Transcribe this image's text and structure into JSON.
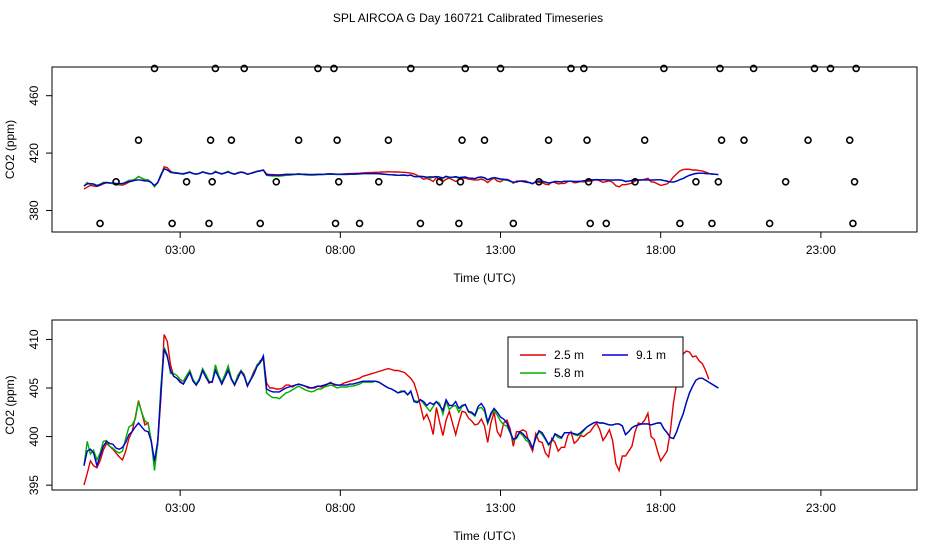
{
  "title": "SPL AIRCOA G  Day 160721  Calibrated Timeseries",
  "chart_data": [
    {
      "type": "line",
      "id": "top",
      "xlabel": "Time (UTC)",
      "ylabel": "CO2 (ppm)",
      "xlim": [
        -1.0,
        26.0
      ],
      "ylim": [
        365,
        480
      ],
      "xticks": [
        {
          "v": 3,
          "label": "03:00"
        },
        {
          "v": 8,
          "label": "08:00"
        },
        {
          "v": 13,
          "label": "13:00"
        },
        {
          "v": 18,
          "label": "18:00"
        },
        {
          "v": 23,
          "label": "23:00"
        }
      ],
      "yticks": [
        {
          "v": 380,
          "label": "380"
        },
        {
          "v": 420,
          "label": "420"
        },
        {
          "v": 460,
          "label": "460"
        }
      ],
      "series": [
        {
          "name": "2.5 m",
          "color": "#e00000"
        },
        {
          "name": "5.8 m",
          "color": "#00b000"
        },
        {
          "name": "9.1 m",
          "color": "#0000d0"
        }
      ],
      "reference_points": {
        "color": "#000000",
        "x": [
          0.5,
          2.2,
          1.7,
          1.0,
          2.75,
          3.2,
          3.9,
          4.0,
          4.1,
          3.95,
          4.6,
          5.0,
          5.5,
          6.0,
          6.7,
          7.3,
          7.8,
          7.9,
          7.85,
          7.95,
          8.6,
          9.2,
          9.5,
          10.2,
          10.5,
          11.1,
          11.7,
          11.8,
          11.9,
          11.75,
          12.5,
          13.0,
          13.4,
          14.2,
          14.5,
          15.2,
          15.6,
          15.7,
          15.75,
          15.8,
          16.3,
          17.2,
          17.5,
          18.1,
          18.6,
          19.1,
          19.6,
          19.8,
          19.9,
          19.85,
          20.6,
          20.9,
          21.4,
          21.9,
          22.6,
          22.8,
          23.3,
          23.9,
          24.0,
          24.05,
          24.1
        ],
        "y": [
          371,
          479,
          429,
          400,
          371,
          400,
          371,
          400,
          479,
          429,
          429,
          479,
          371,
          400,
          429,
          479,
          479,
          429,
          371,
          400,
          371,
          400,
          429,
          479,
          371,
          400,
          371,
          429,
          479,
          400,
          429,
          479,
          371,
          400,
          429,
          479,
          479,
          429,
          400,
          371,
          371,
          400,
          429,
          479,
          371,
          400,
          371,
          400,
          429,
          479,
          429,
          479,
          371,
          400,
          429,
          479,
          479,
          429,
          371,
          400,
          479
        ]
      }
    },
    {
      "type": "line",
      "id": "bottom",
      "xlabel": "Time (UTC)",
      "ylabel": "CO2 (ppm)",
      "xlim": [
        -1.0,
        26.0
      ],
      "ylim": [
        394.5,
        412
      ],
      "xticks": [
        {
          "v": 3,
          "label": "03:00"
        },
        {
          "v": 8,
          "label": "08:00"
        },
        {
          "v": 13,
          "label": "13:00"
        },
        {
          "v": 18,
          "label": "18:00"
        },
        {
          "v": 23,
          "label": "23:00"
        }
      ],
      "yticks": [
        {
          "v": 395,
          "label": "395"
        },
        {
          "v": 400,
          "label": "400"
        },
        {
          "v": 405,
          "label": "405"
        },
        {
          "v": 410,
          "label": "410"
        }
      ],
      "legend": "top-center",
      "series": [
        {
          "name": "2.5 m",
          "color": "#e00000"
        },
        {
          "name": "5.8 m",
          "color": "#00b000"
        },
        {
          "name": "9.1 m",
          "color": "#0000d0"
        }
      ],
      "x": [
        0.0,
        0.1,
        0.2,
        0.3,
        0.4,
        0.5,
        0.6,
        0.7,
        0.8,
        0.9,
        1.0,
        1.1,
        1.2,
        1.3,
        1.4,
        1.5,
        1.6,
        1.7,
        1.8,
        1.9,
        2.0,
        2.1,
        2.2,
        2.3,
        2.4,
        2.5,
        2.6,
        2.7,
        2.8,
        2.9,
        3.0,
        3.1,
        3.2,
        3.3,
        3.4,
        3.5,
        3.6,
        3.7,
        3.8,
        3.9,
        4.0,
        4.1,
        4.2,
        4.3,
        4.4,
        4.5,
        4.6,
        4.7,
        4.8,
        4.9,
        5.0,
        5.1,
        5.2,
        5.3,
        5.4,
        5.5,
        5.6,
        5.7,
        5.8,
        5.9,
        6.0,
        6.1,
        6.2,
        6.3,
        6.4,
        6.5,
        6.6,
        6.7,
        6.8,
        6.9,
        7.0,
        7.1,
        7.2,
        7.3,
        7.4,
        7.5,
        7.6,
        7.7,
        7.8,
        7.9,
        8.0,
        8.1,
        8.2,
        8.3,
        8.4,
        8.5,
        8.6,
        8.7,
        8.8,
        8.9,
        9.0,
        9.1,
        9.2,
        9.3,
        9.4,
        9.5,
        9.6,
        9.7,
        9.8,
        9.9,
        10.0,
        10.1,
        10.2,
        10.3,
        10.4,
        10.5,
        10.6,
        10.7,
        10.8,
        10.9,
        11.0,
        11.1,
        11.2,
        11.3,
        11.4,
        11.5,
        11.6,
        11.7,
        11.8,
        11.9,
        12.0,
        12.1,
        12.2,
        12.3,
        12.4,
        12.5,
        12.6,
        12.7,
        12.8,
        12.9,
        13.0,
        13.1,
        13.2,
        13.3,
        13.4,
        13.5,
        13.6,
        13.7,
        13.8,
        13.9,
        14.0,
        14.1,
        14.2,
        14.3,
        14.4,
        14.5,
        14.6,
        14.7,
        14.8,
        14.9,
        15.0,
        15.1,
        15.2,
        15.3,
        15.4,
        15.5,
        15.6,
        15.7,
        15.8,
        15.9,
        16.0,
        16.1,
        16.2,
        16.3,
        16.4,
        16.5,
        16.6,
        16.7,
        16.8,
        16.9,
        17.0,
        17.1,
        17.2,
        17.3,
        17.4,
        17.5,
        17.6,
        17.7,
        17.8,
        17.9,
        18.0,
        18.1,
        18.2,
        18.3,
        18.4,
        18.5,
        18.6,
        18.7,
        18.8,
        18.9,
        19.0,
        19.1,
        19.2,
        19.3,
        19.4,
        19.5,
        19.6,
        19.7,
        19.8,
        19.9,
        20.0,
        20.1,
        20.2,
        20.3,
        20.4,
        20.5,
        20.6,
        20.7,
        20.8,
        20.9,
        21.0,
        21.1,
        21.2,
        21.3,
        21.4,
        21.5,
        21.6,
        21.7,
        21.8,
        21.9,
        22.0,
        22.1,
        22.2,
        22.3,
        22.4,
        22.5,
        22.6,
        22.7,
        22.8,
        22.9,
        23.0,
        23.1,
        23.2,
        23.3,
        23.4,
        23.5,
        23.6,
        23.7,
        23.8,
        23.9,
        24.0
      ],
      "values_by_series": [
        [
          395.0,
          396.2,
          397.5,
          397.0,
          396.8,
          397.5,
          398.6,
          399.3,
          399.0,
          398.7,
          398.3,
          397.9,
          397.6,
          398.5,
          399.8,
          400.5,
          402.0,
          403.7,
          402.5,
          401.2,
          401.4,
          399.5,
          397.2,
          399.2,
          404.0,
          410.5,
          409.8,
          407.4,
          406.2,
          406.0,
          405.7,
          405.4,
          406.2,
          406.8,
          405.8,
          405.3,
          405.9,
          406.8,
          406.2,
          405.5,
          405.7,
          406.9,
          406.2,
          405.4,
          406.3,
          406.9,
          405.9,
          405.3,
          406.3,
          406.8,
          406.4,
          405.2,
          405.9,
          406.7,
          407.3,
          407.8,
          408.1,
          405.5,
          405.0,
          405.0,
          404.9,
          404.9,
          405.0,
          405.3,
          405.3,
          405.1,
          405.3,
          405.4,
          405.3,
          405.2,
          405.0,
          405.0,
          405.0,
          405.2,
          405.1,
          405.2,
          405.4,
          405.6,
          405.3,
          405.3,
          405.3,
          405.5,
          405.6,
          405.7,
          405.8,
          405.9,
          406.0,
          406.2,
          406.3,
          406.4,
          406.5,
          406.6,
          406.7,
          406.8,
          406.9,
          407.0,
          406.9,
          406.8,
          406.8,
          406.7,
          406.6,
          406.3,
          406.0,
          405.5,
          404.5,
          403.2,
          401.8,
          402.3,
          401.5,
          400.2,
          403.0,
          401.5,
          400.1,
          401.7,
          402.6,
          401.4,
          400.2,
          401.5,
          402.6,
          402.5,
          401.9,
          401.6,
          401.2,
          401.3,
          401.8,
          401.1,
          399.4,
          401.4,
          402.5,
          400.5,
          400.0,
          401.4,
          401.7,
          400.8,
          399.0,
          400.5,
          400.5,
          400.7,
          400.5,
          399.2,
          398.5,
          400.3,
          399.5,
          399.4,
          398.3,
          397.9,
          399.8,
          399.4,
          398.5,
          398.9,
          398.9,
          400.1,
          400.5,
          399.3,
          399.6,
          400.1,
          400.0,
          400.3,
          400.5,
          401.0,
          401.4,
          400.7,
          399.6,
          400.1,
          400.7,
          399.6,
          397.2,
          396.5,
          398.0,
          398.0,
          398.5,
          399.0,
          400.5,
          401.4,
          401.3,
          401.7,
          402.4,
          400.0,
          399.7,
          398.5,
          397.5,
          398.0,
          398.5,
          400.5,
          403.5,
          405.5,
          407.5,
          408.5,
          408.8,
          408.7,
          408.2,
          408.3,
          407.8,
          407.5,
          406.8,
          405.9
        ],
        [
          397.0,
          399.5,
          398.2,
          398.6,
          397.6,
          398.3,
          399.5,
          399.6,
          399.0,
          398.8,
          398.5,
          398.3,
          398.5,
          399.8,
          401.0,
          401.2,
          401.8,
          403.6,
          402.5,
          401.6,
          401.4,
          399.5,
          396.5,
          399.3,
          405.2,
          409.2,
          408.4,
          406.5,
          406.5,
          406.3,
          405.9,
          405.7,
          406.3,
          406.8,
          405.9,
          405.4,
          406.0,
          407.0,
          406.4,
          405.7,
          405.6,
          407.4,
          406.3,
          405.6,
          406.4,
          407.3,
          406.0,
          405.4,
          406.2,
          406.8,
          406.3,
          405.3,
          405.9,
          406.5,
          407.4,
          407.7,
          407.9,
          404.5,
          404.2,
          404.0,
          404.0,
          403.9,
          404.2,
          404.5,
          404.6,
          404.8,
          405.0,
          405.2,
          405.0,
          404.8,
          404.7,
          404.6,
          404.7,
          404.9,
          404.9,
          405.1,
          405.2,
          405.3,
          405.2,
          405.0,
          405.1,
          405.1,
          405.1,
          405.2,
          405.2,
          405.3,
          405.4,
          405.6,
          405.6,
          405.6,
          405.6,
          405.7,
          405.6,
          405.4,
          405.2,
          405.0,
          404.9,
          404.7,
          404.5,
          404.7,
          404.6,
          404.3,
          404.6,
          403.7,
          403.6,
          403.8,
          403.4,
          403.0,
          402.6,
          403.1,
          403.6,
          403.4,
          402.3,
          403.6,
          402.8,
          403.1,
          403.2,
          402.5,
          403.1,
          403.3,
          402.5,
          402.4,
          402.1,
          402.9,
          403.0,
          402.6,
          401.3,
          402.2,
          402.7,
          402.2,
          401.6,
          401.2,
          401.1,
          400.4,
          399.6,
          399.8,
          400.4,
          400.1,
          399.6,
          399.4,
          398.8,
          399.8,
          400.5,
          400.2,
          399.7,
          399.1,
          399.5,
          400.2,
          399.9,
          399.8,
          400.4,
          400.4,
          400.4,
          400.2,
          400.1,
          400.2,
          400.6,
          401.0,
          401.2,
          401.4,
          401.5,
          401.4,
          401.4,
          401.3,
          401.2,
          401.2,
          401.3,
          401.3,
          401.1,
          400.2,
          400.5,
          400.9,
          401.1,
          401.2,
          401.3,
          401.3,
          401.3,
          401.2,
          401.3,
          401.4,
          401.4,
          400.8,
          400.4,
          399.9,
          399.8,
          400.5,
          401.5,
          402.3,
          403.5,
          404.5,
          405.2,
          405.8,
          406.0,
          406.0,
          405.8,
          405.6,
          405.4,
          405.2,
          405.0
        ],
        [
          397.0,
          398.5,
          398.7,
          398.3,
          397.0,
          398.0,
          399.0,
          399.5,
          399.3,
          399.2,
          398.8,
          398.7,
          398.9,
          399.4,
          400.2,
          400.5,
          401.0,
          401.4,
          401.0,
          400.6,
          400.5,
          399.5,
          397.5,
          399.5,
          404.5,
          409.0,
          408.2,
          406.8,
          406.2,
          406.0,
          405.6,
          405.4,
          406.0,
          406.6,
          405.7,
          405.3,
          405.8,
          406.8,
          406.1,
          405.6,
          405.6,
          406.8,
          406.1,
          405.4,
          406.1,
          406.8,
          405.9,
          405.3,
          406.0,
          406.7,
          406.2,
          405.2,
          405.8,
          406.4,
          407.2,
          407.6,
          408.3,
          404.9,
          404.7,
          404.6,
          404.6,
          404.6,
          404.8,
          405.0,
          405.1,
          405.2,
          405.3,
          405.4,
          405.3,
          405.2,
          405.1,
          405.0,
          405.1,
          405.2,
          405.2,
          405.3,
          405.4,
          405.5,
          405.4,
          405.3,
          405.3,
          405.3,
          405.3,
          405.4,
          405.4,
          405.5,
          405.6,
          405.7,
          405.7,
          405.7,
          405.7,
          405.7,
          405.6,
          405.4,
          405.2,
          405.0,
          404.9,
          404.7,
          404.5,
          404.6,
          404.7,
          404.3,
          404.7,
          403.6,
          403.5,
          403.8,
          403.6,
          403.2,
          403.5,
          403.3,
          403.6,
          403.2,
          402.7,
          403.8,
          403.2,
          403.2,
          403.6,
          402.9,
          403.2,
          403.3,
          402.6,
          402.5,
          402.2,
          403.1,
          403.4,
          402.9,
          401.5,
          402.4,
          402.9,
          402.5,
          402.0,
          401.8,
          401.4,
          400.5,
          399.7,
          399.9,
          400.5,
          400.3,
          399.9,
          399.6,
          398.8,
          399.9,
          400.6,
          400.4,
          399.8,
          399.2,
          399.6,
          400.3,
          400.1,
          399.9,
          400.4,
          400.4,
          400.4,
          400.3,
          400.2,
          400.4,
          400.7,
          401.0,
          401.2,
          401.4,
          401.5,
          401.4,
          401.4,
          401.3,
          401.2,
          401.2,
          401.3,
          401.3,
          401.1,
          400.2,
          400.5,
          400.9,
          401.1,
          401.2,
          401.3,
          401.3,
          401.3,
          401.2,
          401.3,
          401.4,
          401.4,
          400.8,
          400.4,
          399.9,
          399.8,
          400.5,
          401.5,
          402.3,
          403.5,
          404.5,
          405.2,
          405.8,
          406.0,
          406.0,
          405.8,
          405.6,
          405.4,
          405.2,
          405.0
        ]
      ]
    }
  ]
}
